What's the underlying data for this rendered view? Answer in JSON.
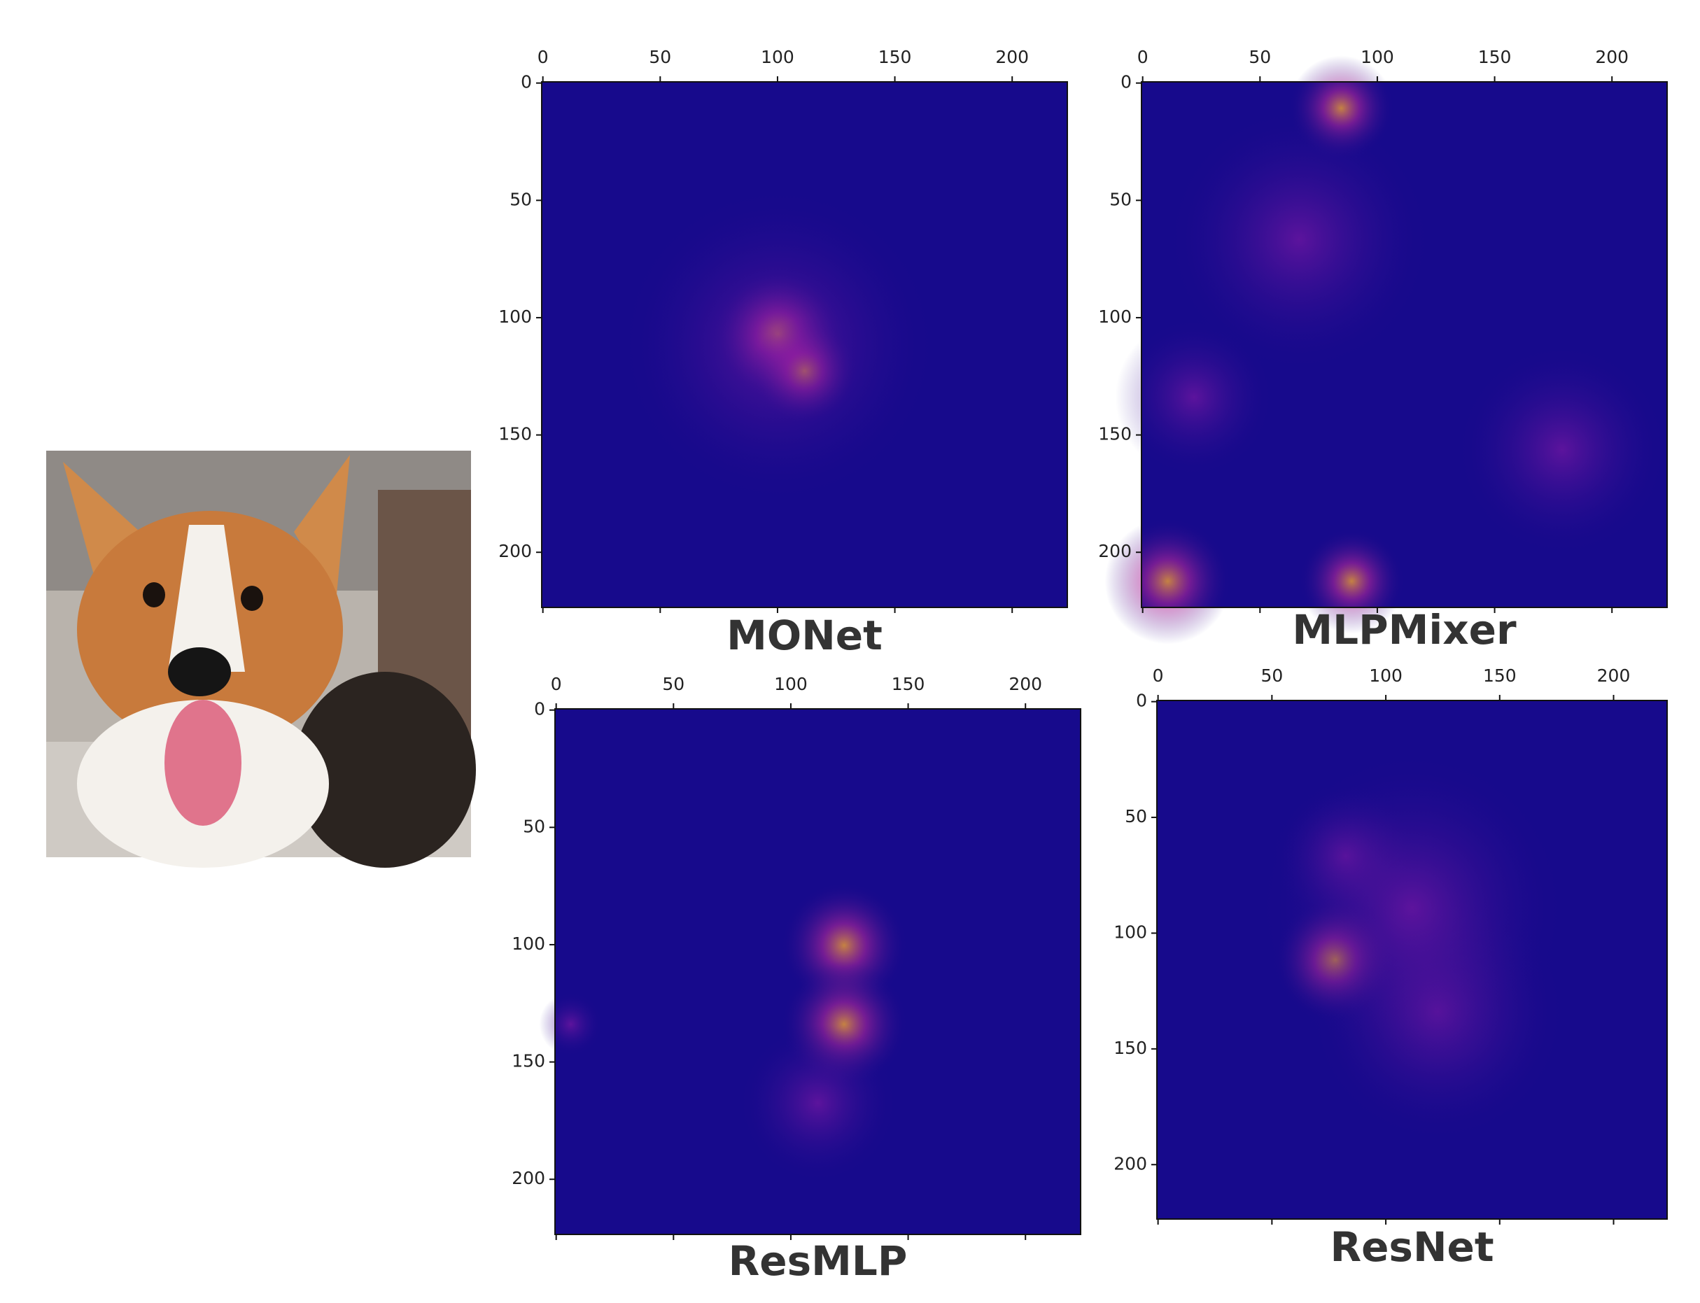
{
  "chart_data": [
    {
      "type": "heatmap",
      "title": "MONet",
      "xlim": [
        -0.5,
        223.5
      ],
      "ylim": [
        223.5,
        -0.5
      ],
      "xticks": [
        0,
        50,
        100,
        150,
        200
      ],
      "yticks": [
        0,
        50,
        100,
        150,
        200
      ]
    },
    {
      "type": "heatmap",
      "title": "MLPMixer",
      "xlim": [
        -0.5,
        223.5
      ],
      "ylim": [
        223.5,
        -0.5
      ],
      "xticks": [
        0,
        50,
        100,
        150,
        200
      ],
      "yticks": [
        0,
        50,
        100,
        150,
        200
      ]
    },
    {
      "type": "heatmap",
      "title": "ResMLP",
      "xlim": [
        -0.5,
        223.5
      ],
      "ylim": [
        223.5,
        -0.5
      ],
      "xticks": [
        0,
        50,
        100,
        150,
        200
      ],
      "yticks": [
        0,
        50,
        100,
        150,
        200
      ]
    },
    {
      "type": "heatmap",
      "title": "ResNet",
      "xlim": [
        -0.5,
        223.5
      ],
      "ylim": [
        223.5,
        -0.5
      ],
      "xticks": [
        0,
        50,
        100,
        150,
        200
      ],
      "yticks": [
        0,
        50,
        100,
        150,
        200
      ]
    }
  ]
}
